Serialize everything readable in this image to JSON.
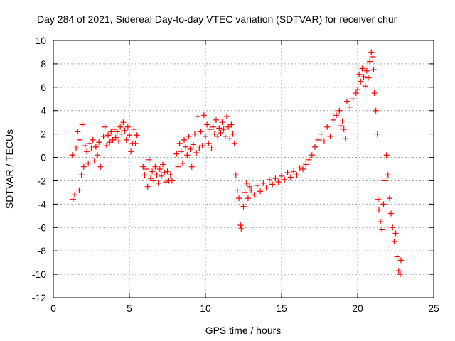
{
  "chart_data": {
    "type": "scatter",
    "title": "Day 284 of 2021, Sidereal Day-to-day VTEC variation (SDTVAR) for receiver chur",
    "xlabel": "GPS time / hours",
    "ylabel": "SDTVAR / TECUs",
    "xlim": [
      0,
      25
    ],
    "ylim": [
      -12,
      10
    ],
    "xticks": [
      0,
      5,
      10,
      15,
      20,
      25
    ],
    "yticks": [
      -12,
      -10,
      -8,
      -6,
      -4,
      -2,
      0,
      2,
      4,
      6,
      8,
      10
    ],
    "grid": true,
    "marker": "+",
    "series_color": "#ff0000",
    "series": [
      {
        "name": "SDTVAR",
        "points": [
          [
            1.25,
            0.2
          ],
          [
            1.3,
            -3.6
          ],
          [
            1.4,
            -3.2
          ],
          [
            1.5,
            0.8
          ],
          [
            1.6,
            2.2
          ],
          [
            1.7,
            -2.8
          ],
          [
            1.75,
            1.5
          ],
          [
            1.85,
            -1.5
          ],
          [
            1.9,
            2.8
          ],
          [
            2.0,
            -0.8
          ],
          [
            2.1,
            1.0
          ],
          [
            2.2,
            0.5
          ],
          [
            2.3,
            -0.5
          ],
          [
            2.4,
            1.2
          ],
          [
            2.5,
            0.8
          ],
          [
            2.6,
            1.5
          ],
          [
            2.7,
            -0.3
          ],
          [
            2.8,
            0.9
          ],
          [
            2.9,
            0.2
          ],
          [
            3.0,
            1.3
          ],
          [
            3.1,
            -0.8
          ],
          [
            3.3,
            1.8
          ],
          [
            3.4,
            2.6
          ],
          [
            3.5,
            1.0
          ],
          [
            3.6,
            1.9
          ],
          [
            3.7,
            1.3
          ],
          [
            3.8,
            2.2
          ],
          [
            3.9,
            1.5
          ],
          [
            4.0,
            2.4
          ],
          [
            4.1,
            1.7
          ],
          [
            4.2,
            2.2
          ],
          [
            4.3,
            1.4
          ],
          [
            4.4,
            2.6
          ],
          [
            4.5,
            2.0
          ],
          [
            4.6,
            3.0
          ],
          [
            4.7,
            2.3
          ],
          [
            4.8,
            1.5
          ],
          [
            4.9,
            2.6
          ],
          [
            5.0,
            1.9
          ],
          [
            5.1,
            0.5
          ],
          [
            5.2,
            1.2
          ],
          [
            5.3,
            2.4
          ],
          [
            5.4,
            1.2
          ],
          [
            5.5,
            1.9
          ],
          [
            5.9,
            -0.8
          ],
          [
            6.0,
            -1.5
          ],
          [
            6.1,
            -1.0
          ],
          [
            6.2,
            -2.5
          ],
          [
            6.3,
            -0.2
          ],
          [
            6.4,
            -1.8
          ],
          [
            6.5,
            -1.2
          ],
          [
            6.6,
            -2.0
          ],
          [
            6.7,
            -0.8
          ],
          [
            6.8,
            -1.5
          ],
          [
            6.9,
            -2.2
          ],
          [
            7.0,
            -1.0
          ],
          [
            7.1,
            -1.6
          ],
          [
            7.2,
            -0.6
          ],
          [
            7.3,
            -1.3
          ],
          [
            7.4,
            -2.1
          ],
          [
            7.5,
            -1.2
          ],
          [
            7.6,
            -2.0
          ],
          [
            7.7,
            -1.5
          ],
          [
            7.8,
            -2.0
          ],
          [
            8.1,
            0.3
          ],
          [
            8.2,
            -0.8
          ],
          [
            8.3,
            1.2
          ],
          [
            8.4,
            0.5
          ],
          [
            8.5,
            -0.5
          ],
          [
            8.6,
            1.5
          ],
          [
            8.7,
            0.9
          ],
          [
            8.8,
            0.2
          ],
          [
            8.9,
            1.8
          ],
          [
            9.0,
            0.7
          ],
          [
            9.1,
            -0.8
          ],
          [
            9.2,
            1.1
          ],
          [
            9.3,
            2.0
          ],
          [
            9.4,
            0.4
          ],
          [
            9.5,
            3.5
          ],
          [
            9.6,
            0.8
          ],
          [
            9.7,
            2.2
          ],
          [
            9.8,
            1.0
          ],
          [
            9.9,
            3.6
          ],
          [
            10.0,
            1.8
          ],
          [
            10.1,
            2.8
          ],
          [
            10.2,
            1.2
          ],
          [
            10.3,
            2.4
          ],
          [
            10.4,
            0.8
          ],
          [
            10.5,
            2.6
          ],
          [
            10.6,
            2.0
          ],
          [
            10.7,
            3.2
          ],
          [
            10.8,
            1.8
          ],
          [
            10.9,
            2.5
          ],
          [
            11.0,
            2.1
          ],
          [
            11.1,
            3.0
          ],
          [
            11.2,
            2.4
          ],
          [
            11.3,
            1.8
          ],
          [
            11.4,
            3.5
          ],
          [
            11.5,
            2.6
          ],
          [
            11.6,
            1.6
          ],
          [
            11.7,
            2.8
          ],
          [
            11.8,
            2.0
          ],
          [
            11.9,
            1.2
          ],
          [
            12.0,
            -1.5
          ],
          [
            12.1,
            -2.8
          ],
          [
            12.2,
            -3.5
          ],
          [
            12.3,
            -5.8
          ],
          [
            12.35,
            -6.1
          ],
          [
            12.5,
            -4.2
          ],
          [
            12.6,
            -3.0
          ],
          [
            12.7,
            -2.2
          ],
          [
            12.8,
            -3.5
          ],
          [
            12.9,
            -2.5
          ],
          [
            13.0,
            -2.8
          ],
          [
            13.2,
            -3.2
          ],
          [
            13.4,
            -2.4
          ],
          [
            13.6,
            -2.9
          ],
          [
            13.8,
            -2.2
          ],
          [
            14.0,
            -2.6
          ],
          [
            14.2,
            -1.9
          ],
          [
            14.4,
            -2.3
          ],
          [
            14.6,
            -1.8
          ],
          [
            14.8,
            -2.1
          ],
          [
            15.0,
            -1.6
          ],
          [
            15.2,
            -1.9
          ],
          [
            15.4,
            -1.3
          ],
          [
            15.6,
            -1.7
          ],
          [
            15.8,
            -1.2
          ],
          [
            16.0,
            -1.5
          ],
          [
            16.2,
            -0.9
          ],
          [
            16.4,
            -1.0
          ],
          [
            16.6,
            -0.6
          ],
          [
            16.8,
            -0.2
          ],
          [
            17.0,
            0.2
          ],
          [
            17.2,
            0.9
          ],
          [
            17.4,
            1.5
          ],
          [
            17.6,
            2.0
          ],
          [
            17.8,
            1.4
          ],
          [
            18.0,
            2.6
          ],
          [
            18.2,
            1.8
          ],
          [
            18.4,
            3.2
          ],
          [
            18.6,
            3.6
          ],
          [
            18.8,
            4.0
          ],
          [
            18.9,
            2.7
          ],
          [
            19.0,
            3.1
          ],
          [
            19.1,
            2.4
          ],
          [
            19.2,
            1.6
          ],
          [
            19.3,
            4.8
          ],
          [
            19.5,
            4.3
          ],
          [
            19.7,
            5.0
          ],
          [
            19.9,
            5.5
          ],
          [
            20.0,
            5.8
          ],
          [
            20.1,
            7.1
          ],
          [
            20.2,
            6.5
          ],
          [
            20.3,
            7.6
          ],
          [
            20.4,
            6.9
          ],
          [
            20.5,
            6.1
          ],
          [
            20.6,
            7.4
          ],
          [
            20.7,
            6.8
          ],
          [
            20.8,
            8.2
          ],
          [
            20.9,
            9.0
          ],
          [
            21.0,
            8.6
          ],
          [
            21.05,
            7.5
          ],
          [
            21.1,
            5.5
          ],
          [
            21.2,
            4.0
          ],
          [
            21.3,
            2.0
          ],
          [
            21.35,
            -3.6
          ],
          [
            21.4,
            -4.5
          ],
          [
            21.5,
            -5.5
          ],
          [
            21.6,
            -6.2
          ],
          [
            21.7,
            -4.0
          ],
          [
            21.8,
            -2.0
          ],
          [
            21.9,
            0.2
          ],
          [
            22.0,
            -1.5
          ],
          [
            22.1,
            -3.5
          ],
          [
            22.2,
            -4.8
          ],
          [
            22.3,
            -6.0
          ],
          [
            22.4,
            -7.2
          ],
          [
            22.5,
            -6.5
          ],
          [
            22.6,
            -8.5
          ],
          [
            22.7,
            -9.7
          ],
          [
            22.8,
            -10.0
          ],
          [
            22.85,
            -8.8
          ]
        ]
      }
    ]
  }
}
